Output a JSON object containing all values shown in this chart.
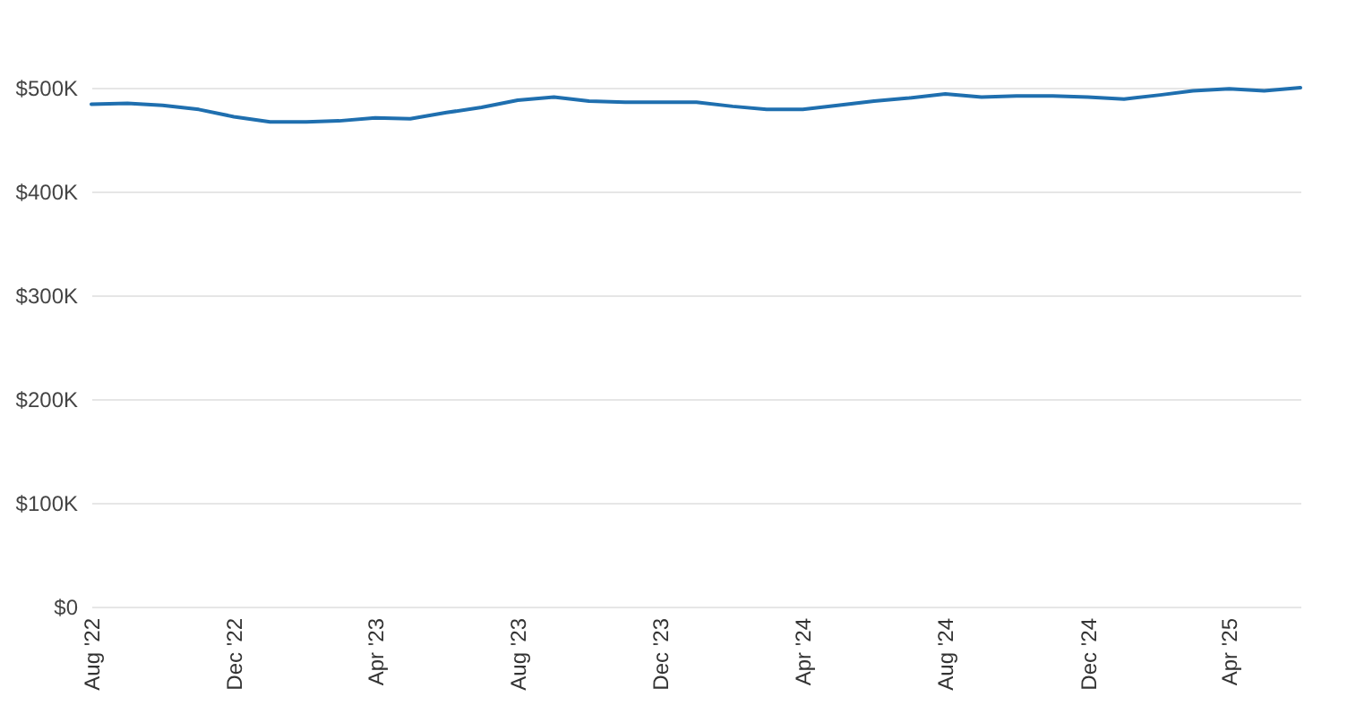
{
  "chart_data": {
    "type": "line",
    "x": [
      "2022-08",
      "2022-09",
      "2022-10",
      "2022-11",
      "2022-12",
      "2023-01",
      "2023-02",
      "2023-03",
      "2023-04",
      "2023-05",
      "2023-06",
      "2023-07",
      "2023-08",
      "2023-09",
      "2023-10",
      "2023-11",
      "2023-12",
      "2024-01",
      "2024-02",
      "2024-03",
      "2024-04",
      "2024-05",
      "2024-06",
      "2024-07",
      "2024-08",
      "2024-09",
      "2024-10",
      "2024-11",
      "2024-12",
      "2025-01",
      "2025-02",
      "2025-03",
      "2025-04",
      "2025-05",
      "2025-06"
    ],
    "series": [
      {
        "color": "#1f6faf",
        "values": [
          484000,
          485000,
          483000,
          479000,
          472000,
          467000,
          467000,
          468000,
          471000,
          470000,
          476000,
          481000,
          488000,
          491000,
          487000,
          486000,
          486000,
          486000,
          482000,
          479000,
          479000,
          483000,
          487000,
          490000,
          494000,
          491000,
          492000,
          492000,
          491000,
          489000,
          493000,
          497000,
          499000,
          497000,
          500000
        ]
      }
    ],
    "xlim": [
      "2022-08",
      "2025-06"
    ],
    "xticks": [
      {
        "value": "2022-08",
        "label": "Aug '22"
      },
      {
        "value": "2022-12",
        "label": "Dec '22"
      },
      {
        "value": "2023-04",
        "label": "Apr '23"
      },
      {
        "value": "2023-08",
        "label": "Aug '23"
      },
      {
        "value": "2023-12",
        "label": "Dec '23"
      },
      {
        "value": "2024-04",
        "label": "Apr '24"
      },
      {
        "value": "2024-08",
        "label": "Aug '24"
      },
      {
        "value": "2024-12",
        "label": "Dec '24"
      },
      {
        "value": "2025-04",
        "label": "Apr '25"
      }
    ],
    "ylim": [
      0,
      500000
    ],
    "yticks": [
      {
        "value": 0,
        "label": "$0"
      },
      {
        "value": 100000,
        "label": "$100K"
      },
      {
        "value": 200000,
        "label": "$200K"
      },
      {
        "value": 300000,
        "label": "$300K"
      },
      {
        "value": 400000,
        "label": "$400K"
      },
      {
        "value": 500000,
        "label": "$500K"
      }
    ],
    "grid": "y",
    "marker": "none",
    "line_style": "solid"
  }
}
